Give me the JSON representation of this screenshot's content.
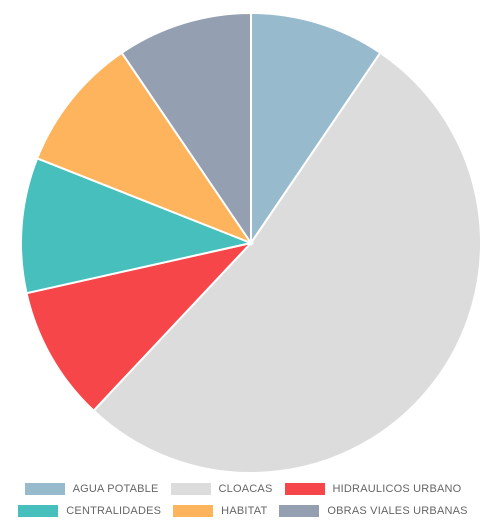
{
  "chart_data": {
    "type": "pie",
    "categories": [
      "AGUA POTABLE",
      "CLOACAS",
      "HIDRAULICOS URBANO",
      "CENTRALIDADES",
      "HABITAT",
      "OBRAS VIALES URBANAS"
    ],
    "values": [
      9.5,
      52.5,
      9.5,
      9.5,
      9.5,
      9.5
    ],
    "colors": [
      "#97bbcd",
      "#dcdcdc",
      "#f7464a",
      "#46bfbd",
      "#fdb45c",
      "#949fb1"
    ],
    "slice_border": "#ffffff",
    "start_angle": "12 o'clock",
    "direction": "clockwise",
    "legend_position": "bottom"
  }
}
